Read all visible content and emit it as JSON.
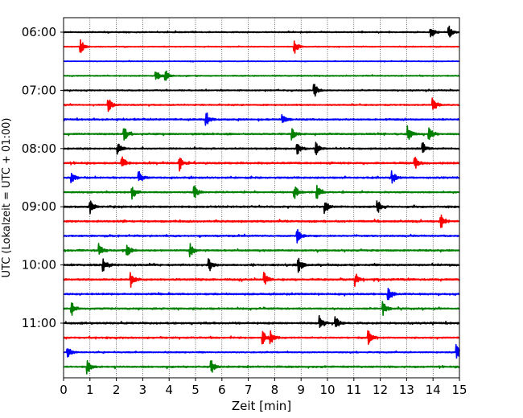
{
  "chart_data": {
    "type": "line",
    "title": "",
    "xlabel": "Zeit  [min]",
    "ylabel": "UTC (Lokalzeit = UTC + 01:00)",
    "xlim": [
      0,
      15
    ],
    "x_ticks": [
      0,
      1,
      2,
      3,
      4,
      5,
      6,
      7,
      8,
      9,
      10,
      11,
      12,
      13,
      14,
      15
    ],
    "x_tick_labels": [
      "0",
      "1",
      "2",
      "3",
      "4",
      "5",
      "6",
      "7",
      "8",
      "9",
      "10",
      "11",
      "12",
      "13",
      "14",
      "15"
    ],
    "y_tick_labels": [
      "06:00",
      "07:00",
      "08:00",
      "09:00",
      "10:00",
      "11:00"
    ],
    "grid": "vertical dotted at each minute",
    "trace_interval_min": 15,
    "color_cycle": [
      "#000000",
      "#ff0000",
      "#0000ff",
      "#008000"
    ],
    "traces": [
      {
        "start": "06:00",
        "color": "#000000",
        "noise": 0.35,
        "events": [
          13.9,
          14.6
        ]
      },
      {
        "start": "06:15",
        "color": "#ff0000",
        "noise": 0.25,
        "events": [
          0.65,
          8.75
        ]
      },
      {
        "start": "06:30",
        "color": "#0000ff",
        "noise": 0.2,
        "events": []
      },
      {
        "start": "06:45",
        "color": "#008000",
        "noise": 0.3,
        "events": [
          3.5,
          3.85
        ]
      },
      {
        "start": "07:00",
        "color": "#000000",
        "noise": 0.35,
        "events": [
          9.5
        ]
      },
      {
        "start": "07:15",
        "color": "#ff0000",
        "noise": 0.4,
        "events": [
          1.7,
          14.0
        ]
      },
      {
        "start": "07:30",
        "color": "#0000ff",
        "noise": 0.45,
        "events": [
          5.4,
          8.3
        ]
      },
      {
        "start": "07:45",
        "color": "#008000",
        "noise": 0.5,
        "events": [
          2.3,
          8.65,
          13.05,
          13.85
        ]
      },
      {
        "start": "08:00",
        "color": "#000000",
        "noise": 0.45,
        "events": [
          2.05,
          8.85,
          9.55,
          13.6
        ]
      },
      {
        "start": "08:15",
        "color": "#ff0000",
        "noise": 0.55,
        "events": [
          2.2,
          4.4,
          13.3
        ]
      },
      {
        "start": "08:30",
        "color": "#0000ff",
        "noise": 0.5,
        "events": [
          0.3,
          2.85,
          12.45
        ]
      },
      {
        "start": "08:45",
        "color": "#008000",
        "noise": 0.45,
        "events": [
          2.6,
          4.95,
          8.75,
          9.6
        ]
      },
      {
        "start": "09:00",
        "color": "#000000",
        "noise": 0.55,
        "events": [
          1.0,
          9.9,
          11.9
        ]
      },
      {
        "start": "09:15",
        "color": "#ff0000",
        "noise": 0.55,
        "events": [
          14.3
        ]
      },
      {
        "start": "09:30",
        "color": "#0000ff",
        "noise": 0.45,
        "events": [
          8.85
        ]
      },
      {
        "start": "09:45",
        "color": "#008000",
        "noise": 0.5,
        "events": [
          1.35,
          2.4,
          4.8
        ]
      },
      {
        "start": "10:00",
        "color": "#000000",
        "noise": 0.55,
        "events": [
          1.5,
          5.5,
          8.9
        ]
      },
      {
        "start": "10:15",
        "color": "#ff0000",
        "noise": 0.55,
        "events": [
          2.55,
          7.6,
          11.05
        ]
      },
      {
        "start": "10:30",
        "color": "#0000ff",
        "noise": 0.5,
        "events": [
          12.3
        ]
      },
      {
        "start": "10:45",
        "color": "#008000",
        "noise": 0.5,
        "events": [
          0.3,
          12.1
        ]
      },
      {
        "start": "11:00",
        "color": "#000000",
        "noise": 0.55,
        "events": [
          9.7,
          10.3
        ]
      },
      {
        "start": "11:15",
        "color": "#ff0000",
        "noise": 0.45,
        "events": [
          7.55,
          7.85,
          11.55
        ]
      },
      {
        "start": "11:30",
        "color": "#0000ff",
        "noise": 0.35,
        "events": [
          0.15,
          14.9
        ]
      },
      {
        "start": "11:45",
        "color": "#008000",
        "noise": 0.5,
        "events": [
          5.6,
          0.9
        ]
      }
    ]
  }
}
